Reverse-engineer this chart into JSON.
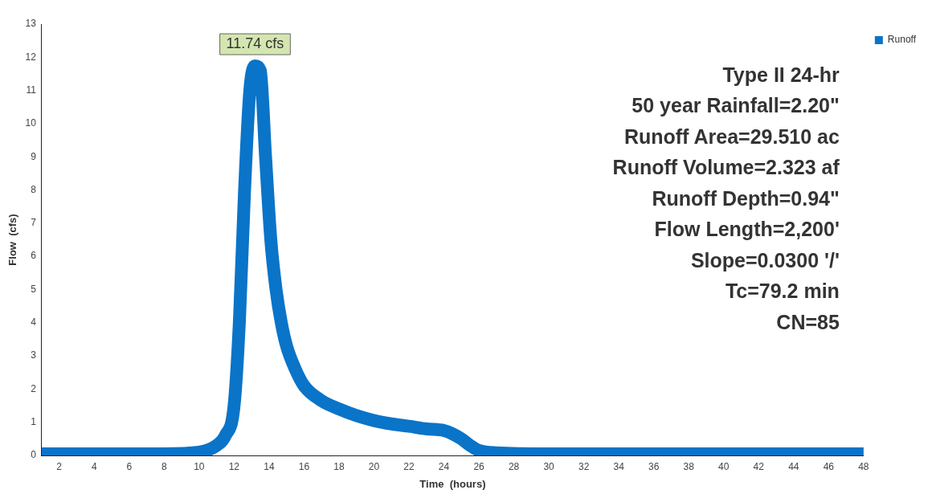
{
  "chart_data": {
    "type": "line",
    "xlabel": "Time  (hours)",
    "ylabel": "Flow  (cfs)",
    "series": [
      {
        "name": "Runoff",
        "color": "#0a74c8",
        "x": [
          1,
          4,
          8,
          10,
          11,
          11.5,
          12,
          12.3,
          12.6,
          12.9,
          13.2,
          13.5,
          13.8,
          14.1,
          14.4,
          14.7,
          15,
          15.5,
          16,
          17,
          18,
          19,
          20,
          21,
          22,
          23,
          24,
          24.5,
          25,
          25.5,
          26,
          27,
          30,
          36,
          42,
          48
        ],
        "values": [
          0.05,
          0.05,
          0.05,
          0.1,
          0.3,
          0.6,
          1.5,
          4,
          8,
          11,
          11.74,
          11.6,
          9,
          6.5,
          5,
          4,
          3.3,
          2.6,
          2.1,
          1.65,
          1.4,
          1.2,
          1.05,
          0.95,
          0.88,
          0.8,
          0.75,
          0.65,
          0.5,
          0.3,
          0.15,
          0.08,
          0.05,
          0.05,
          0.05,
          0.05
        ]
      }
    ],
    "xlim": [
      1,
      48
    ],
    "xticks": [
      2,
      4,
      6,
      8,
      10,
      12,
      14,
      16,
      18,
      20,
      22,
      24,
      26,
      28,
      30,
      32,
      34,
      36,
      38,
      40,
      42,
      44,
      46,
      48
    ],
    "ylim": [
      0,
      13
    ],
    "yticks": [
      0,
      1,
      2,
      3,
      4,
      5,
      6,
      7,
      8,
      9,
      10,
      11,
      12,
      13
    ],
    "grid": false,
    "legend": "top right",
    "marker": "none",
    "line_style": "solid",
    "annotations": [
      {
        "text": "11.74 cfs",
        "x": 13.2,
        "y": 11.74
      },
      "Type II 24-hr",
      "50 year Rainfall=2.20\"",
      "Runoff Area=29.510 ac",
      "Runoff Volume=2.323 af",
      "Runoff Depth=0.94\"",
      "Flow Length=2,200'",
      "Slope=0.0300 '/'",
      "Tc=79.2 min",
      "CN=85"
    ]
  }
}
